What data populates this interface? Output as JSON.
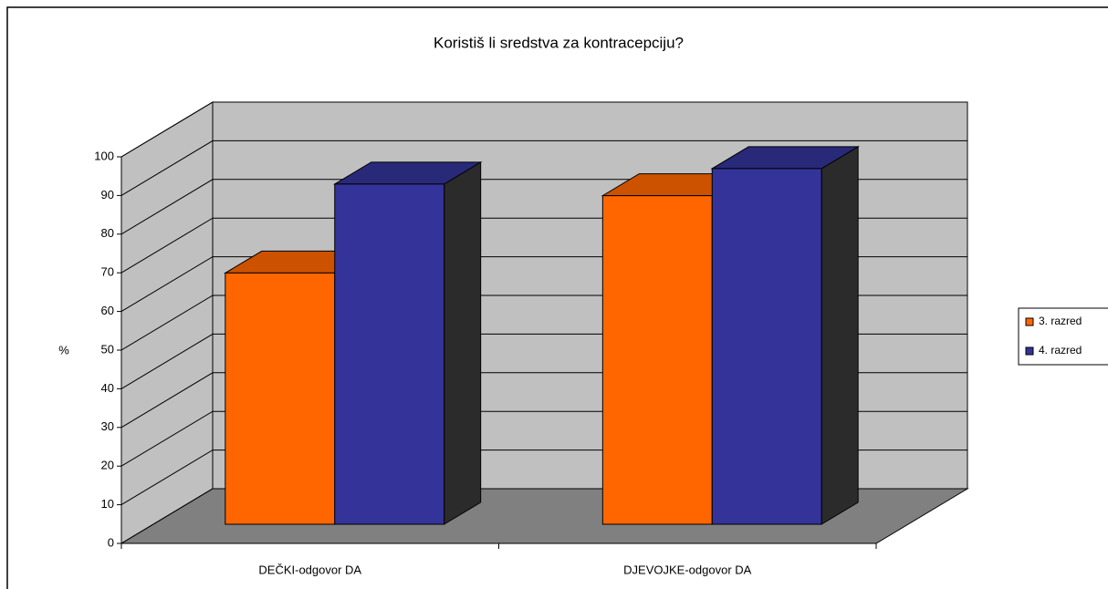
{
  "chart_data": {
    "type": "bar",
    "title": "Koristiš li sredstva za kontracepciju?",
    "ylabel": "%",
    "categories": [
      "DEČKI-odgovor DA",
      "DJEVOJKE-odgovor DA"
    ],
    "series": [
      {
        "name": "3. razred",
        "color": "#ff6600",
        "values": [
          65,
          85
        ]
      },
      {
        "name": "4. razred",
        "color": "#333399",
        "values": [
          88,
          92
        ]
      }
    ],
    "ylim": [
      0,
      100
    ],
    "yticks": [
      0,
      10,
      20,
      30,
      40,
      50,
      60,
      70,
      80,
      90,
      100
    ],
    "grid": true,
    "legend": "right",
    "three_d": true
  }
}
